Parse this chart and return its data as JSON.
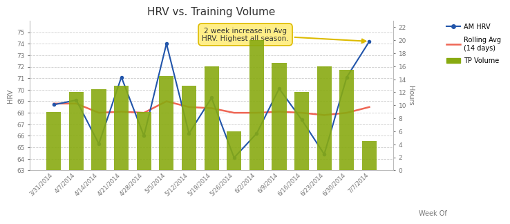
{
  "title": "HRV vs. Training Volume",
  "weeks": [
    "3/31/2014",
    "4/7/2014",
    "4/14/2014",
    "4/21/2014",
    "4/28/2014",
    "5/5/2014",
    "5/12/2014",
    "5/19/2014",
    "5/26/2014",
    "6/2/2014",
    "6/9/2014",
    "6/16/2014",
    "6/23/2014",
    "6/30/2014",
    "7/7/2014"
  ],
  "hrv": [
    68.7,
    69.1,
    65.3,
    71.1,
    66.0,
    74.0,
    66.2,
    69.3,
    64.1,
    66.2,
    70.1,
    67.4,
    64.4,
    71.1,
    74.2
  ],
  "rolling_avg": [
    68.8,
    68.8,
    68.0,
    68.1,
    68.0,
    69.0,
    68.5,
    68.4,
    68.0,
    68.0,
    68.1,
    68.0,
    67.8,
    68.0,
    68.5
  ],
  "tp_volume": [
    9.0,
    12.0,
    12.5,
    13.0,
    9.0,
    14.5,
    13.0,
    16.0,
    6.0,
    20.0,
    16.5,
    12.0,
    16.0,
    15.5,
    4.5
  ],
  "hrv_color": "#2255AA",
  "rolling_color": "#EE6655",
  "bar_color": "#88AA11",
  "annotation_text": "2 week increase in Avg\nHRV. Highest all season.",
  "xlabel": "Week Of",
  "ylabel_left": "HRV",
  "ylabel_right": "Hours",
  "ylim_left": [
    63,
    76
  ],
  "ylim_right": [
    0,
    23
  ],
  "yticks_left": [
    63,
    64,
    65,
    66,
    67,
    68,
    69,
    70,
    71,
    72,
    73,
    74,
    75
  ],
  "yticks_right": [
    0,
    2,
    4,
    6,
    8,
    10,
    12,
    14,
    16,
    18,
    20,
    22
  ],
  "legend_labels": [
    "AM HRV",
    "Rolling Avg\n(14 days)",
    "TP Volume"
  ],
  "bg_color": "#FFFFFF",
  "grid_color": "#CCCCCC",
  "figsize": [
    7.2,
    3.28
  ],
  "dpi": 100
}
